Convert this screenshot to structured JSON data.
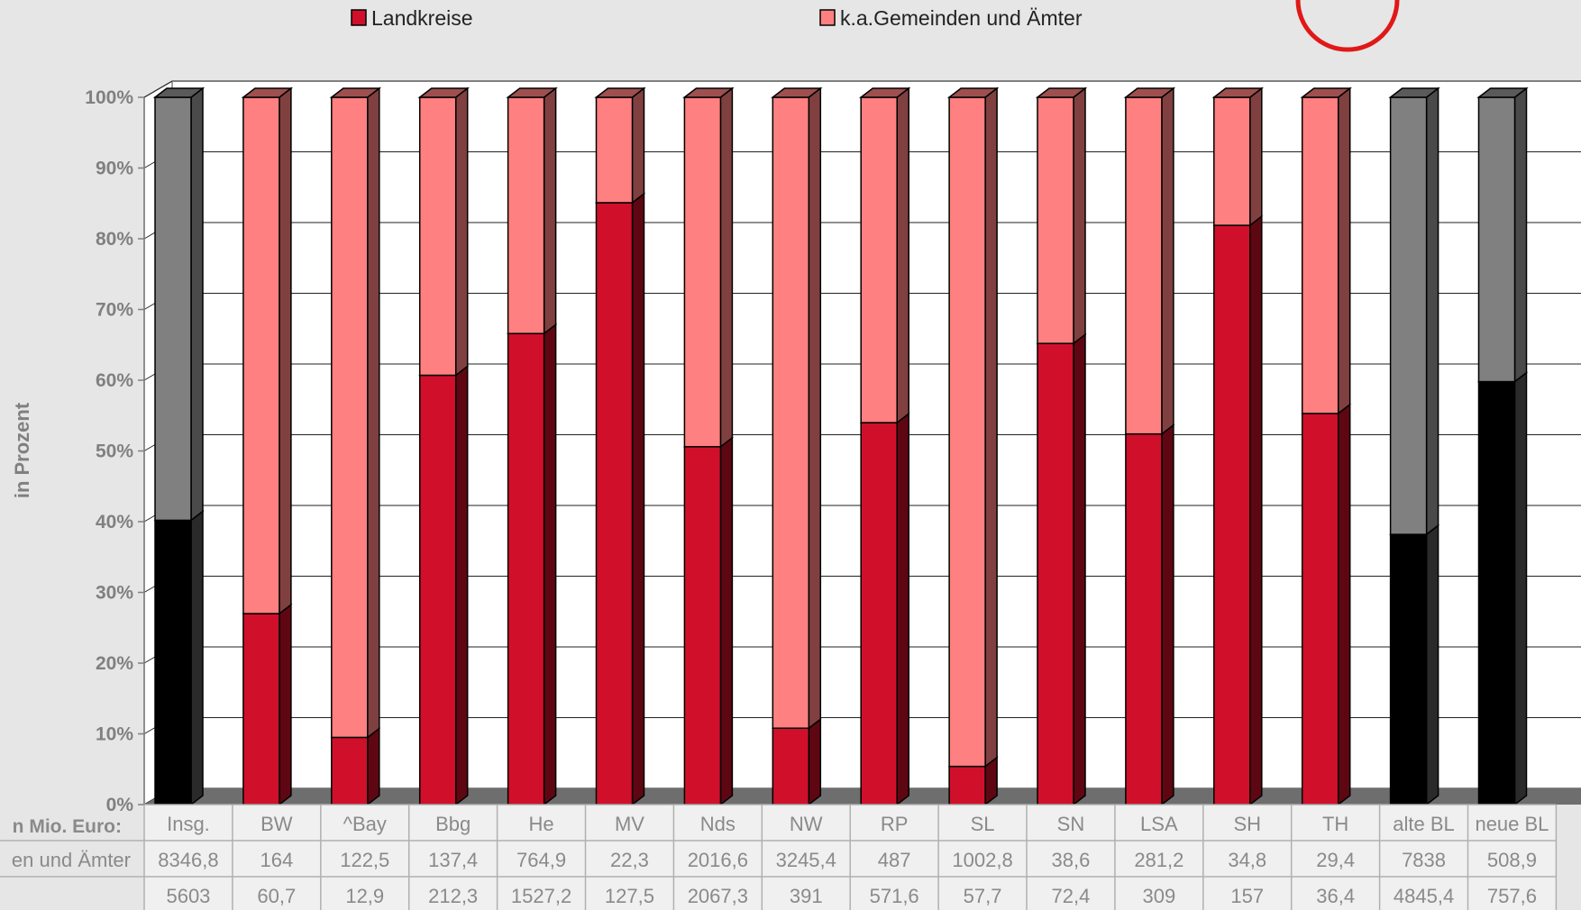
{
  "chart_data": {
    "type": "bar",
    "stacked": true,
    "percent_stacked": true,
    "three_d": true,
    "categories": [
      "Insg.",
      "BW",
      "^Bay",
      "Bbg",
      "He",
      "MV",
      "Nds",
      "NW",
      "RP",
      "SL",
      "SN",
      "LSA",
      "SH",
      "TH",
      "alte BL",
      "neue BL"
    ],
    "series": [
      {
        "name": "Landkreise",
        "values": [
          40.2,
          27.0,
          9.5,
          60.7,
          66.6,
          85.1,
          50.6,
          10.8,
          54.0,
          5.4,
          65.2,
          52.4,
          81.9,
          55.3,
          38.2,
          59.8
        ],
        "color": "#d0102b"
      },
      {
        "name": "k.a.Gemeinden und Ämter",
        "values": [
          59.8,
          73.0,
          90.5,
          39.3,
          33.4,
          14.9,
          49.4,
          89.2,
          46.0,
          94.6,
          34.8,
          47.6,
          18.1,
          44.7,
          61.8,
          40.2
        ],
        "color": "#ff8080"
      }
    ],
    "highlight_categories": [
      "Insg.",
      "alte BL",
      "neue BL"
    ],
    "highlight_colors": {
      "bottom": "#000000",
      "top": "#808080"
    },
    "ylabel": "in Prozent",
    "ylim": [
      0,
      100
    ],
    "yticks": [
      "0%",
      "10%",
      "20%",
      "30%",
      "40%",
      "50%",
      "60%",
      "70%",
      "80%",
      "90%",
      "100%"
    ],
    "grid": true,
    "legend_position": "top",
    "table": {
      "header_label": "n Mio. Euro:",
      "rows": [
        {
          "label": "en und Ämter",
          "values": [
            "8346,8",
            "164",
            "122,5",
            "137,4",
            "764,9",
            "22,3",
            "2016,6",
            "3245,4",
            "487",
            "1002,8",
            "38,6",
            "281,2",
            "34,8",
            "29,4",
            "7838",
            "508,9"
          ]
        },
        {
          "label": "",
          "values": [
            "5603",
            "60,7",
            "12,9",
            "212,3",
            "1527,2",
            "127,5",
            "2067,3",
            "391",
            "571,6",
            "57,7",
            "72,4",
            "309",
            "157",
            "36,4",
            "4845,4",
            "757,6"
          ]
        }
      ]
    }
  }
}
